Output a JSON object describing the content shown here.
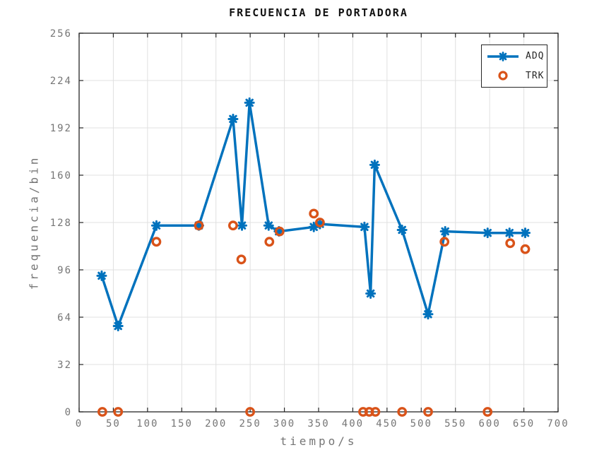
{
  "chart_data": {
    "type": "line",
    "title": "FRECUENCIA DE PORTADORA",
    "xlabel": "tiempo/s",
    "ylabel": "frequencia/bin",
    "xlim": [
      0,
      700
    ],
    "ylim": [
      0,
      256
    ],
    "xticks": [
      0,
      50,
      100,
      150,
      200,
      250,
      300,
      350,
      400,
      450,
      500,
      550,
      600,
      650,
      700
    ],
    "yticks": [
      0,
      32,
      64,
      96,
      128,
      160,
      192,
      224,
      256
    ],
    "grid": true,
    "legend_position": "top-right",
    "series": [
      {
        "name": "ADQ",
        "type": "line-with-markers",
        "marker": "asterisk",
        "color": "#0072BD",
        "points": [
          [
            33,
            92
          ],
          [
            57,
            58
          ],
          [
            113,
            126
          ],
          [
            175,
            126
          ],
          [
            225,
            198
          ],
          [
            238,
            126
          ],
          [
            249,
            209
          ],
          [
            277,
            126
          ],
          [
            292,
            122
          ],
          [
            343,
            125
          ],
          [
            352,
            127
          ],
          [
            417,
            125
          ],
          [
            426,
            80
          ],
          [
            432,
            167
          ],
          [
            472,
            123
          ],
          [
            510,
            66
          ],
          [
            535,
            122
          ],
          [
            597,
            121
          ],
          [
            629,
            121
          ],
          [
            652,
            121
          ]
        ]
      },
      {
        "name": "TRK",
        "type": "scatter",
        "marker": "circle",
        "color": "#D95319",
        "points": [
          [
            34,
            0
          ],
          [
            57,
            0
          ],
          [
            113,
            115
          ],
          [
            175,
            126
          ],
          [
            225,
            126
          ],
          [
            237,
            103
          ],
          [
            250,
            0
          ],
          [
            278,
            115
          ],
          [
            293,
            122
          ],
          [
            343,
            134
          ],
          [
            352,
            128
          ],
          [
            415,
            0
          ],
          [
            424,
            0
          ],
          [
            433,
            0
          ],
          [
            472,
            0
          ],
          [
            510,
            0
          ],
          [
            534,
            115
          ],
          [
            597,
            0
          ],
          [
            630,
            114
          ],
          [
            652,
            110
          ]
        ]
      }
    ]
  },
  "colors": {
    "series_adq": "#0072BD",
    "series_trk": "#D95319",
    "grid": "#e0e0e0",
    "axis_box": "#262626",
    "tick_label": "#757575",
    "title": "#111111"
  }
}
